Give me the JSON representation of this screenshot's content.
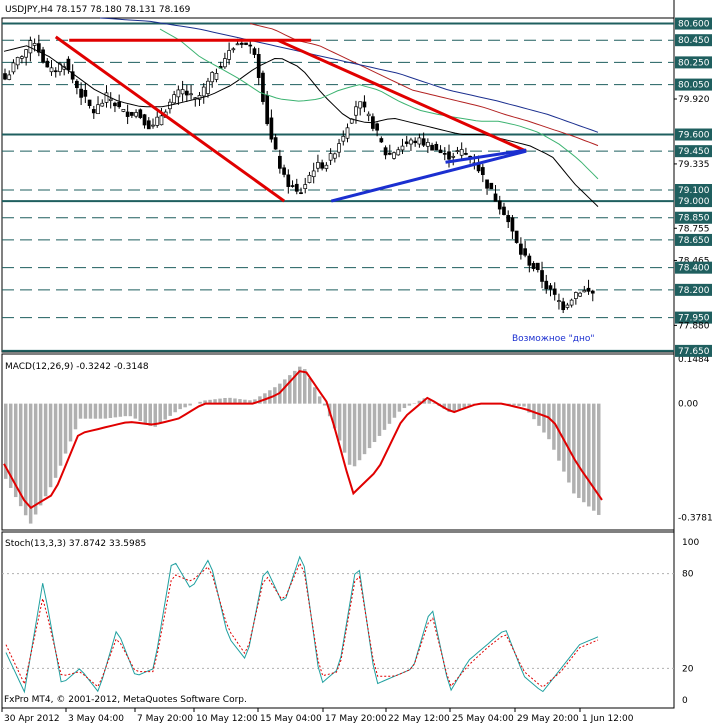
{
  "main_panel": {
    "header": "USDJPY,H4  78.157 78.180 78.131 78.169",
    "annotation": "Возможное \"дно\"",
    "ylim": [
      77.64,
      80.65
    ],
    "y_ticks": [
      "80.600",
      "80.450",
      "80.250",
      "80.050",
      "79.920",
      "79.600",
      "79.450",
      "79.335",
      "79.100",
      "79.000",
      "78.850",
      "78.755",
      "78.650",
      "78.465",
      "78.400",
      "78.200",
      "77.950",
      "77.880",
      "77.650"
    ],
    "highlighted_levels": [
      "80.600",
      "80.450",
      "80.250",
      "80.050",
      "79.600",
      "79.450",
      "79.100",
      "79.000",
      "78.850",
      "78.650",
      "78.400",
      "78.200",
      "77.950",
      "77.650"
    ],
    "dashed_levels": [
      80.45,
      80.25,
      80.05,
      79.45,
      79.1,
      78.85,
      78.65,
      78.4,
      78.2,
      77.95
    ],
    "solid_levels": [
      80.6,
      79.6,
      79.0,
      77.65
    ],
    "trendlines": [
      {
        "color": "#e00000",
        "points": [
          [
            0.08,
            80.48
          ],
          [
            0.42,
            79.0
          ]
        ]
      },
      {
        "color": "#e00000",
        "points": [
          [
            0.1,
            80.45
          ],
          [
            0.46,
            80.45
          ]
        ]
      },
      {
        "color": "#e00000",
        "points": [
          [
            0.41,
            80.45
          ],
          [
            0.78,
            79.45
          ]
        ]
      },
      {
        "color": "#1b2fd0",
        "points": [
          [
            0.49,
            79.0
          ],
          [
            0.78,
            79.45
          ]
        ]
      },
      {
        "color": "#1b2fd0",
        "points": [
          [
            0.66,
            79.35
          ],
          [
            0.78,
            79.46
          ]
        ]
      }
    ]
  },
  "macd_panel": {
    "header": "MACD(12,26,9) -0.3242 -0.3148",
    "ylim": [
      -0.42,
      0.165
    ],
    "y_ticks": [
      "0.1484",
      "0.00",
      "-0.3781"
    ]
  },
  "stoch_panel": {
    "header": "Stoch(13,3,3) 37.8742 33.5985",
    "ylim": [
      0,
      100
    ],
    "y_ticks": [
      "100",
      "80",
      "20",
      "0"
    ]
  },
  "x_ticks": [
    "30 Apr 2012",
    "3 May 04:00",
    "7 May 20:00",
    "10 May 12:00",
    "15 May 04:00",
    "17 May 20:00",
    "22 May 12:00",
    "25 May 04:00",
    "29 May 20:00",
    "1 Jun 12:00"
  ],
  "footer": "FxPro MT4, © 2001-2012, MetaQuotes Software Corp.",
  "colors": {
    "background": "#ffffff",
    "grid_solid": "#1f5f5f",
    "grid_dash": "#1f5f5f",
    "bull": "#ffffff",
    "bear": "#000000",
    "ma_fast": "#000000",
    "ma_mid": "#3cb371",
    "ma_slow": "#b22222",
    "ma_long": "#1b2f8f",
    "label_bg": "#1f5f5f",
    "macd_hist": "#b0b0b0",
    "macd_signal": "#e00000",
    "stoch_main": "#20a0a0",
    "stoch_signal": "#e00000"
  },
  "chart_data": {
    "type": "candlestick",
    "instrument": "USDJPY",
    "timeframe": "H4",
    "x_tick_labels": [
      "30 Apr 2012",
      "3 May 04:00",
      "7 May 20:00",
      "10 May 12:00",
      "15 May 04:00",
      "17 May 20:00",
      "22 May 12:00",
      "25 May 04:00",
      "29 May 20:00",
      "1 Jun 12:00"
    ],
    "close_anchors": [
      80.1,
      80.3,
      80.45,
      80.15,
      80.25,
      80.0,
      79.8,
      79.95,
      79.8,
      79.8,
      79.65,
      79.85,
      80.0,
      79.9,
      80.1,
      80.3,
      80.45,
      80.35,
      79.6,
      79.2,
      79.05,
      79.3,
      79.35,
      79.6,
      79.9,
      79.7,
      79.4,
      79.5,
      79.55,
      79.5,
      79.4,
      79.45,
      79.35,
      79.1,
      78.9,
      78.55,
      78.4,
      78.2,
      78.05,
      78.2,
      78.17
    ],
    "moving_averages": [
      {
        "name": "fast",
        "color": "#000000",
        "anchors": [
          80.35,
          80.4,
          80.3,
          80.15,
          80.0,
          79.9,
          79.85,
          79.85,
          79.9,
          79.95,
          80.05,
          80.2,
          80.3,
          80.2,
          79.95,
          79.75,
          79.7,
          79.75,
          79.7,
          79.65,
          79.6,
          79.6,
          79.55,
          79.5,
          79.4,
          79.15,
          78.95
        ]
      },
      {
        "name": "mid",
        "color": "#3cb371",
        "anchors": [
          80.55,
          80.45,
          80.3,
          80.2,
          80.1,
          79.98,
          79.92,
          79.9,
          79.92,
          80.0,
          80.05,
          80.0,
          79.9,
          79.82,
          79.78,
          79.75,
          79.72,
          79.72,
          79.68,
          79.62,
          79.52,
          79.38,
          79.2
        ]
      },
      {
        "name": "slow",
        "color": "#b22222",
        "anchors": [
          80.6,
          80.55,
          80.45,
          80.4,
          80.3,
          80.2,
          80.1,
          80.0,
          79.95,
          79.9,
          79.85,
          79.78,
          79.72,
          79.65,
          79.58,
          79.5
        ]
      },
      {
        "name": "long",
        "color": "#1b2f8f",
        "anchors": [
          80.65,
          80.62,
          80.55,
          80.45,
          80.35,
          80.25,
          80.15,
          80.0,
          79.9,
          79.78,
          79.62
        ]
      }
    ],
    "macd": {
      "signal_anchors": [
        -0.2,
        -0.35,
        -0.3,
        -0.1,
        -0.08,
        -0.06,
        -0.07,
        -0.05,
        0.0,
        0.0,
        0.0,
        0.03,
        0.12,
        0.0,
        -0.3,
        -0.22,
        -0.05,
        0.02,
        -0.03,
        0.0,
        0.0,
        -0.02,
        -0.05,
        -0.2,
        -0.32
      ],
      "hist_anchors": [
        -0.25,
        -0.4,
        -0.25,
        -0.05,
        -0.05,
        -0.04,
        -0.08,
        -0.02,
        0.01,
        0.02,
        0.01,
        0.06,
        0.13,
        -0.02,
        -0.22,
        -0.12,
        -0.02,
        0.02,
        -0.03,
        0.0,
        0.0,
        -0.01,
        -0.12,
        -0.3,
        -0.37
      ]
    },
    "stochastic": {
      "main_anchors": [
        30,
        5,
        75,
        10,
        20,
        5,
        45,
        15,
        20,
        90,
        70,
        90,
        40,
        25,
        85,
        60,
        95,
        10,
        20,
        90,
        10,
        15,
        20,
        60,
        5,
        25,
        35,
        45,
        15,
        5,
        20,
        35,
        40
      ],
      "signal_anchors": [
        35,
        10,
        65,
        15,
        18,
        8,
        40,
        18,
        18,
        80,
        75,
        85,
        45,
        28,
        80,
        62,
        90,
        15,
        18,
        85,
        15,
        15,
        20,
        55,
        8,
        22,
        33,
        42,
        18,
        8,
        18,
        33,
        38
      ]
    }
  }
}
